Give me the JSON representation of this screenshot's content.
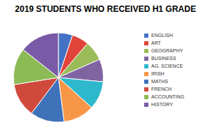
{
  "chart_data": {
    "type": "pie",
    "title": "2019 STUDENTS WHO RECEIVED H1 GRADE",
    "categories": [
      "ENGLISH",
      "ART",
      "GEOGRAPHY",
      "BUSINESS",
      "AG. SCIENCE",
      "IRISH",
      "MATHS",
      "FRENCH",
      "ACCOUNTING",
      "HISTORY"
    ],
    "values": [
      5,
      6,
      7,
      8,
      10,
      11,
      12,
      12,
      13,
      14
    ],
    "colors": [
      "#4472c4",
      "#e0443a",
      "#9bbb59",
      "#8064a2",
      "#2eb8cc",
      "#f79646",
      "#3f72b8",
      "#d04a3c",
      "#8cbb55",
      "#7a5aa6"
    ],
    "legend": "right"
  }
}
